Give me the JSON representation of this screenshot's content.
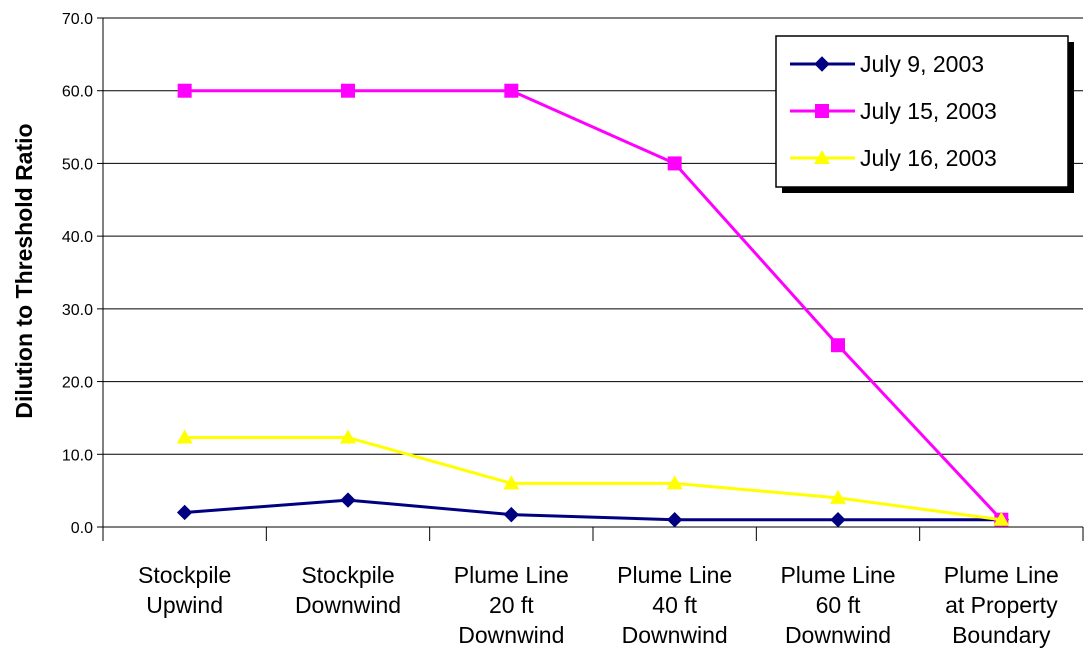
{
  "chart_data": {
    "type": "line",
    "title": "",
    "xlabel": "",
    "ylabel": "Dilution to Threshold Ratio",
    "ylim": [
      0,
      70
    ],
    "ytick_step": 10,
    "ytick_labels": [
      "0.0",
      "10.0",
      "20.0",
      "30.0",
      "40.0",
      "50.0",
      "60.0",
      "70.0"
    ],
    "grid": "horizontal",
    "legend_position": "top-right",
    "categories": [
      [
        "Stockpile",
        "Upwind"
      ],
      [
        "Stockpile",
        "Downwind"
      ],
      [
        "Plume Line",
        "20 ft",
        "Downwind"
      ],
      [
        "Plume Line",
        "40 ft",
        "Downwind"
      ],
      [
        "Plume Line",
        "60 ft",
        "Downwind"
      ],
      [
        "Plume Line",
        "at Property",
        "Boundary"
      ]
    ],
    "series": [
      {
        "name": "July 9, 2003",
        "color": "#000080",
        "marker": "diamond",
        "values": [
          2.0,
          3.7,
          1.7,
          1.0,
          1.0,
          1.0
        ]
      },
      {
        "name": "July 15, 2003",
        "color": "#FF00FF",
        "marker": "square",
        "values": [
          60.0,
          60.0,
          60.0,
          50.0,
          25.0,
          1.0
        ]
      },
      {
        "name": "July 16, 2003",
        "color": "#FFFF00",
        "marker": "triangle",
        "values": [
          12.3,
          12.3,
          6.0,
          6.0,
          4.0,
          1.0
        ]
      }
    ]
  }
}
